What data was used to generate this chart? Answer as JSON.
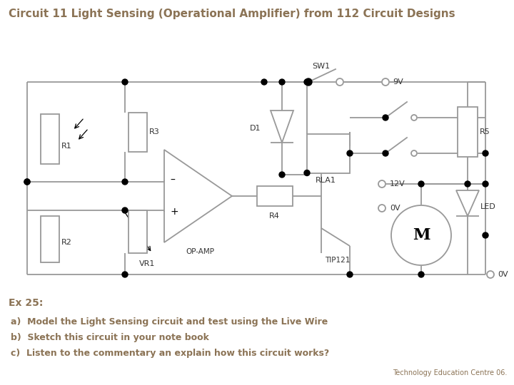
{
  "title": "Circuit 11 Light Sensing (Operational Amplifier) from 112 Circuit Designs",
  "title_color": "#8B7355",
  "title_fontsize": 11,
  "bg_color": "#FFFFFF",
  "circuit_color": "#999999",
  "label_color": "#333333",
  "ex_color": "#8B7355",
  "ex_text": "Ex 25:",
  "items": [
    "a)  Model the Light Sensing circuit and test using the Live Wire",
    "b)  Sketch this circuit in your note book",
    "c)  Listen to the commentary an explain how this circuit works?"
  ],
  "footer": "Technology Education Centre 06.",
  "node_color": "#000000"
}
